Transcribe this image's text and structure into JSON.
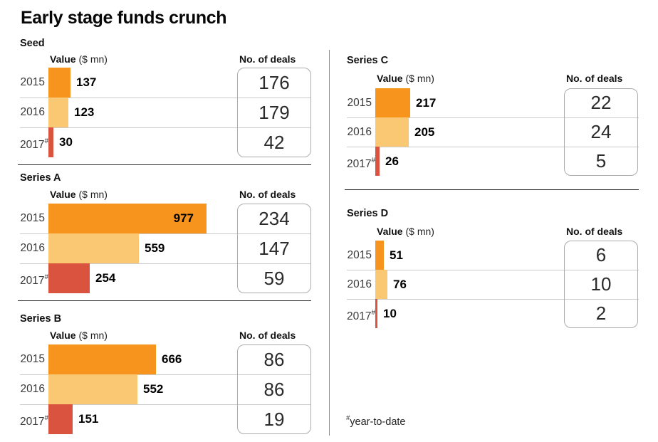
{
  "title": "Early stage funds crunch",
  "labels": {
    "value_bold": "Value",
    "value_unit": " ($ mn)",
    "deals": "No. of deals"
  },
  "footnote": {
    "marker": "#",
    "text": "year-to-date"
  },
  "colors": {
    "bar_2015": "#F7941E",
    "bar_2016": "#FAC873",
    "bar_2017": "#D9533E",
    "separator_dark": "#2f2f2f",
    "separator_light": "#cbcbcb",
    "box_border": "#ababab"
  },
  "chart_data": [
    {
      "type": "bar",
      "title": "Seed",
      "value_axis": "Value ($ mn)",
      "deals_axis": "No. of deals",
      "categories": [
        "2015",
        "2016",
        "2017#"
      ],
      "values": [
        137,
        123,
        30
      ],
      "deals": [
        176,
        179,
        42
      ]
    },
    {
      "type": "bar",
      "title": "Series A",
      "value_axis": "Value ($ mn)",
      "deals_axis": "No. of deals",
      "categories": [
        "2015",
        "2016",
        "2017#"
      ],
      "values": [
        977,
        559,
        254
      ],
      "deals": [
        234,
        147,
        59
      ]
    },
    {
      "type": "bar",
      "title": "Series B",
      "value_axis": "Value ($ mn)",
      "deals_axis": "No. of deals",
      "categories": [
        "2015",
        "2016",
        "2017#"
      ],
      "values": [
        666,
        552,
        151
      ],
      "deals": [
        86,
        86,
        19
      ]
    },
    {
      "type": "bar",
      "title": "Series C",
      "value_axis": "Value ($ mn)",
      "deals_axis": "No. of deals",
      "categories": [
        "2015",
        "2016",
        "2017#"
      ],
      "values": [
        217,
        205,
        26
      ],
      "deals": [
        22,
        24,
        5
      ]
    },
    {
      "type": "bar",
      "title": "Series D",
      "value_axis": "Value ($ mn)",
      "deals_axis": "No. of deals",
      "categories": [
        "2015",
        "2016",
        "2017#"
      ],
      "values": [
        51,
        76,
        10
      ],
      "deals": [
        6,
        10,
        2
      ]
    }
  ]
}
